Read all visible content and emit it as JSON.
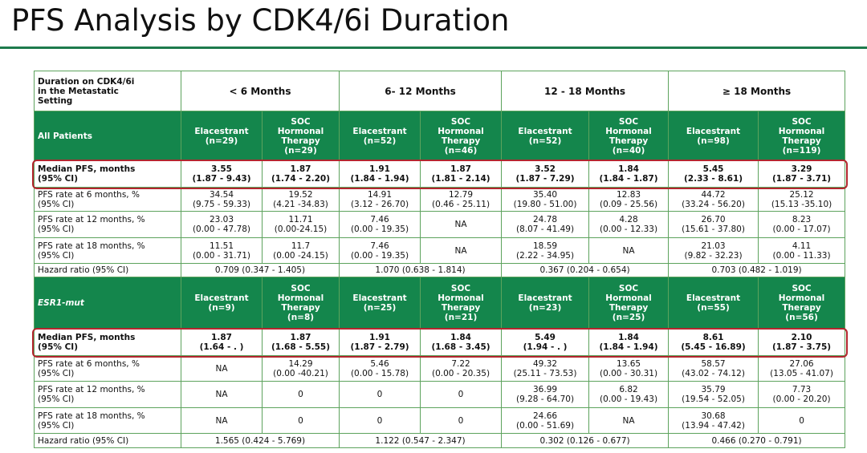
{
  "title": "PFS Analysis by CDK4/6i Duration",
  "table": {
    "corner": [
      "Duration on CDK4/6i",
      "in the Metastatic",
      "Setting"
    ],
    "groups": [
      "< 6 Months",
      "6- 12 Months",
      "12 - 18 Months",
      "≥ 18 Months"
    ],
    "sections": [
      {
        "label": "All Patients",
        "arms": [
          [
            "Elacestrant",
            "(n=29)"
          ],
          [
            "SOC",
            "Hormonal",
            "Therapy",
            "(n=29)"
          ],
          [
            "Elacestrant",
            "(n=52)"
          ],
          [
            "SOC",
            "Hormonal",
            "Therapy",
            "(n=46)"
          ],
          [
            "Elacestrant",
            "(n=52)"
          ],
          [
            "SOC",
            "Hormonal",
            "Therapy",
            "(n=40)"
          ],
          [
            "Elacestrant",
            "(n=98)"
          ],
          [
            "SOC",
            "Hormonal",
            "Therapy",
            "(n=119)"
          ]
        ],
        "median": {
          "label": [
            "Median PFS, months",
            "(95% CI)"
          ],
          "cells": [
            [
              "3.55",
              "(1.87 - 9.43)"
            ],
            [
              "1.87",
              "(1.74 - 2.20)"
            ],
            [
              "1.91",
              "(1.84 - 1.94)"
            ],
            [
              "1.87",
              "(1.81 - 2.14)"
            ],
            [
              "3.52",
              "(1.87 - 7.29)"
            ],
            [
              "1.84",
              "(1.84 - 1.87)"
            ],
            [
              "5.45",
              "(2.33 - 8.61)"
            ],
            [
              "3.29",
              "(1.87 - 3.71)"
            ]
          ]
        },
        "rows": [
          {
            "label": [
              "PFS rate at 6 months, %",
              "(95% CI)"
            ],
            "cells": [
              [
                "34.54",
                "(9.75 - 59.33)"
              ],
              [
                "19.52",
                "(4.21 -34.83)"
              ],
              [
                "14.91",
                "(3.12 - 26.70)"
              ],
              [
                "12.79",
                "(0.46 - 25.11)"
              ],
              [
                "35.40",
                "(19.80 - 51.00)"
              ],
              [
                "12.83",
                "(0.09 - 25.56)"
              ],
              [
                "44.72",
                "(33.24 - 56.20)"
              ],
              [
                "25.12",
                "(15.13 -35.10)"
              ]
            ]
          },
          {
            "label": [
              "PFS rate at 12 months, %",
              "(95% CI)"
            ],
            "cells": [
              [
                "23.03",
                "(0.00 - 47.78)"
              ],
              [
                "11.71",
                "(0.00-24.15)"
              ],
              [
                "7.46",
                "(0.00 - 19.35)"
              ],
              [
                "NA"
              ],
              [
                "24.78",
                "(8.07 - 41.49)"
              ],
              [
                "4.28",
                "(0.00 - 12.33)"
              ],
              [
                "26.70",
                "(15.61 - 37.80)"
              ],
              [
                "8.23",
                "(0.00 - 17.07)"
              ]
            ]
          },
          {
            "label": [
              "PFS rate at 18 months, %",
              "(95% CI)"
            ],
            "cells": [
              [
                "11.51",
                "(0.00 - 31.71)"
              ],
              [
                "11.7",
                "(0.00 -24.15)"
              ],
              [
                "7.46",
                "(0.00 - 19.35)"
              ],
              [
                "NA"
              ],
              [
                "18.59",
                "(2.22 - 34.95)"
              ],
              [
                "NA"
              ],
              [
                "21.03",
                "(9.82 - 32.23)"
              ],
              [
                "4.11",
                "(0.00 - 11.33)"
              ]
            ]
          }
        ],
        "hr": {
          "label": "Hazard ratio (95% CI)",
          "cells": [
            "0.709 (0.347 - 1.405)",
            "1.070 (0.638 - 1.814)",
            "0.367 (0.204 - 0.654)",
            "0.703 (0.482 - 1.019)"
          ]
        }
      },
      {
        "label": "ESR1-mut",
        "arms": [
          [
            "Elacestrant",
            "(n=9)"
          ],
          [
            "SOC",
            "Hormonal",
            "Therapy",
            "(n=8)"
          ],
          [
            "Elacestrant",
            "(n=25)"
          ],
          [
            "SOC",
            "Hormonal",
            "Therapy",
            "(n=21)"
          ],
          [
            "Elacestrant",
            "(n=23)"
          ],
          [
            "SOC",
            "Hormonal",
            "Therapy",
            "(n=25)"
          ],
          [
            "Elacestrant",
            "(n=55)"
          ],
          [
            "SOC",
            "Hormonal",
            "Therapy",
            "(n=56)"
          ]
        ],
        "median": {
          "label": [
            "Median PFS, months",
            "(95% CI)"
          ],
          "cells": [
            [
              "1.87",
              "(1.64 - . )"
            ],
            [
              "1.87",
              "(1.68 - 5.55)"
            ],
            [
              "1.91",
              "(1.87 - 2.79)"
            ],
            [
              "1.84",
              "(1.68 - 3.45)"
            ],
            [
              "5.49",
              "(1.94 - . )"
            ],
            [
              "1.84",
              "(1.84 - 1.94)"
            ],
            [
              "8.61",
              "(5.45 - 16.89)"
            ],
            [
              "2.10",
              "(1.87 - 3.75)"
            ]
          ]
        },
        "rows": [
          {
            "label": [
              "PFS rate at 6 months, %",
              "(95% CI)"
            ],
            "cells": [
              [
                "NA"
              ],
              [
                "14.29",
                "(0.00 -40.21)"
              ],
              [
                "5.46",
                "(0.00 - 15.78)"
              ],
              [
                "7.22",
                "(0.00 - 20.35)"
              ],
              [
                "49.32",
                "(25.11 - 73.53)"
              ],
              [
                "13.65",
                "(0.00 - 30.31)"
              ],
              [
                "58.57",
                "(43.02 - 74.12)"
              ],
              [
                "27.06",
                "(13.05 - 41.07)"
              ]
            ]
          },
          {
            "label": [
              "PFS rate at 12 months, %",
              "(95% CI)"
            ],
            "cells": [
              [
                "NA"
              ],
              [
                "0"
              ],
              [
                "0"
              ],
              [
                "0"
              ],
              [
                "36.99",
                "(9.28 - 64.70)"
              ],
              [
                "6.82",
                "(0.00 - 19.43)"
              ],
              [
                "35.79",
                "(19.54 - 52.05)"
              ],
              [
                "7.73",
                "(0.00 - 20.20)"
              ]
            ]
          },
          {
            "label": [
              "PFS rate at 18 months, %",
              "(95% CI)"
            ],
            "cells": [
              [
                "NA"
              ],
              [
                "0"
              ],
              [
                "0"
              ],
              [
                "0"
              ],
              [
                "24.66",
                "(0.00 - 51.69)"
              ],
              [
                "NA"
              ],
              [
                "30.68",
                "(13.94 - 47.42)"
              ],
              [
                "0"
              ]
            ]
          }
        ],
        "hr": {
          "label": "Hazard ratio (95% CI)",
          "cells": [
            "1.565 (0.424 - 5.769)",
            "1.122 (0.547 - 2.347)",
            "0.302 (0.126 - 0.677)",
            "0.466 (0.270 - 0.791)"
          ]
        }
      }
    ]
  }
}
